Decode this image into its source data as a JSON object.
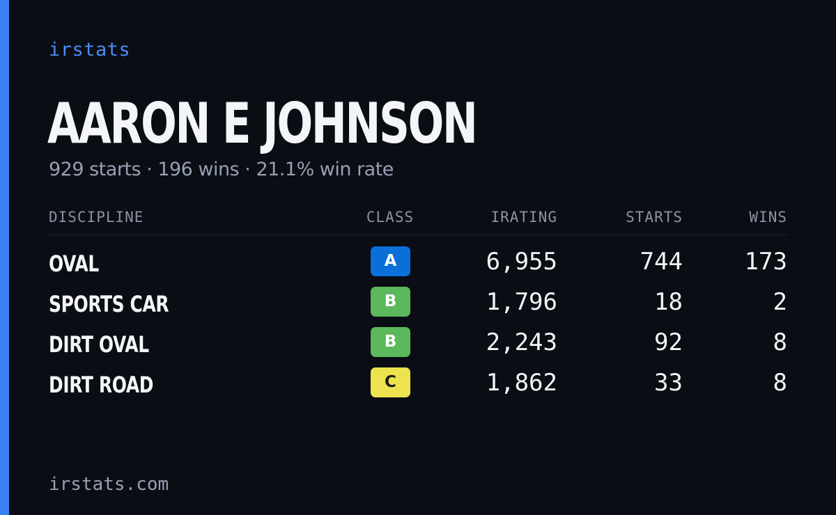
{
  "brand": "irstats",
  "driver": {
    "name": "AARON E JOHNSON",
    "summary": "929 starts · 196 wins · 21.1% win rate"
  },
  "table": {
    "headers": {
      "discipline": "DISCIPLINE",
      "class": "CLASS",
      "irating": "IRATING",
      "starts": "STARTS",
      "wins": "WINS"
    },
    "rows": [
      {
        "discipline": "OVAL",
        "class": "A",
        "class_bg": "#0a6fd8",
        "class_fg": "#ffffff",
        "irating": "6,955",
        "starts": "744",
        "wins": "173"
      },
      {
        "discipline": "SPORTS CAR",
        "class": "B",
        "class_bg": "#5cb85c",
        "class_fg": "#ffffff",
        "irating": "1,796",
        "starts": "18",
        "wins": "2"
      },
      {
        "discipline": "DIRT OVAL",
        "class": "B",
        "class_bg": "#5cb85c",
        "class_fg": "#ffffff",
        "irating": "2,243",
        "starts": "92",
        "wins": "8"
      },
      {
        "discipline": "DIRT ROAD",
        "class": "C",
        "class_bg": "#ede34e",
        "class_fg": "#1a1a1a",
        "irating": "1,862",
        "starts": "33",
        "wins": "8"
      }
    ]
  },
  "footer": "irstats.com",
  "colors": {
    "background": "#0a0d14",
    "accent": "#3b82f6"
  }
}
